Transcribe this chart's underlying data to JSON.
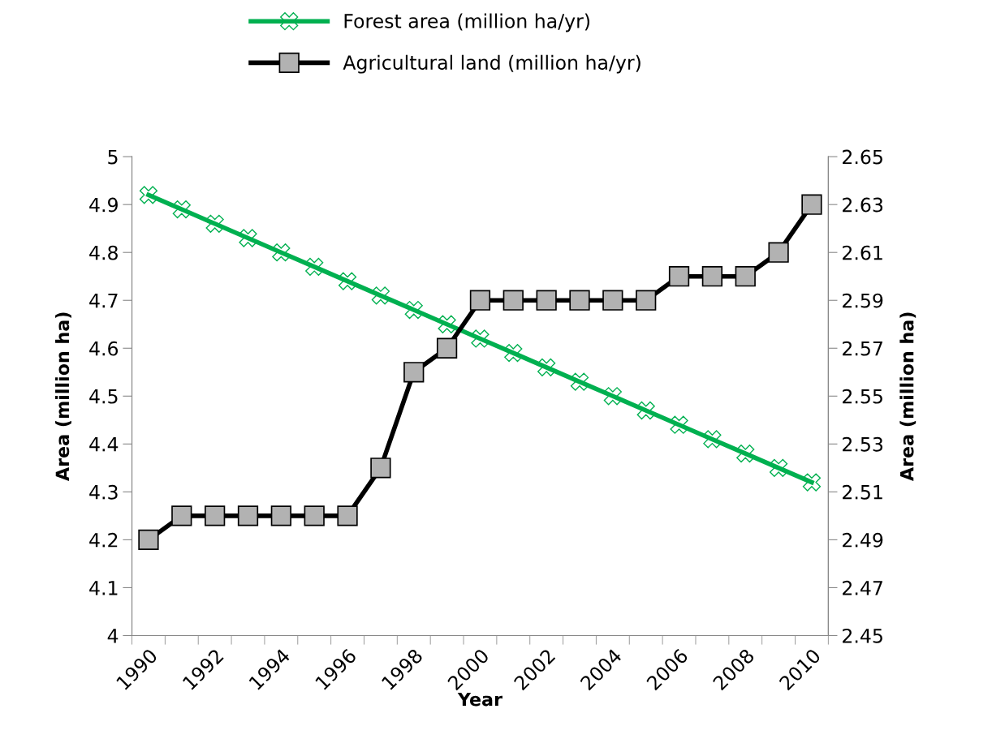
{
  "chart_data": {
    "type": "line",
    "xlabel": "Year",
    "ylabel": "Area (million ha)",
    "y2label": "Area (million ha)",
    "categories": [
      "1990",
      null,
      "1992",
      null,
      "1994",
      null,
      "1996",
      null,
      "1998",
      null,
      "2000",
      null,
      "2002",
      null,
      "2004",
      null,
      "2006",
      null,
      "2008",
      null,
      "2010"
    ],
    "series": [
      {
        "name": "Forest area (million ha/yr)",
        "color": "#00b050",
        "marker": "cross",
        "values": [
          4.92,
          4.89,
          4.86,
          4.83,
          4.8,
          4.77,
          4.74,
          4.71,
          4.68,
          4.65,
          4.62,
          4.59,
          4.56,
          4.53,
          4.5,
          4.47,
          4.44,
          4.41,
          4.38,
          4.35,
          4.32
        ]
      },
      {
        "name": "Agricultural land (million ha/yr)",
        "color": "#000000",
        "marker": "square",
        "axis": "y2",
        "values": [
          2.49,
          2.5,
          2.5,
          2.5,
          2.5,
          2.5,
          2.5,
          2.52,
          2.56,
          2.57,
          2.59,
          2.59,
          2.59,
          2.59,
          2.59,
          2.59,
          2.6,
          2.6,
          2.6,
          2.61,
          2.63
        ]
      }
    ],
    "ylim": [
      4,
      5
    ],
    "yticks": [
      4,
      4.1,
      4.2,
      4.3,
      4.4,
      4.5,
      4.6,
      4.7,
      4.8,
      4.9,
      5
    ],
    "y2lim": [
      2.45,
      2.65
    ],
    "y2ticks": [
      2.45,
      2.47,
      2.49,
      2.51,
      2.53,
      2.55,
      2.57,
      2.59,
      2.61,
      2.63,
      2.65
    ],
    "legend": "top",
    "grid": false
  }
}
